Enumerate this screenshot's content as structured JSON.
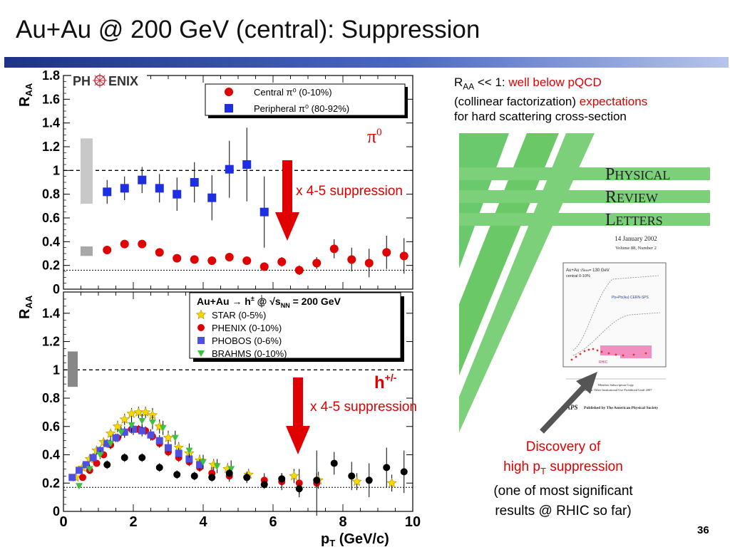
{
  "slide": {
    "title": "Au+Au @ 200 GeV (central): Suppression",
    "page_number": "36"
  },
  "notes": {
    "raa_symbol": "R",
    "raa_sub": "AA",
    "line1_black": " << 1: ",
    "line1_red": "well below pQCD",
    "line2_black": "(collinear factorization) ",
    "line2_red": "expectations",
    "line3_black": "for hard scattering cross-section"
  },
  "discovery": {
    "line1": "Discovery of",
    "line2_pre": "high p",
    "line2_sub": "T",
    "line2_post": " suppression",
    "line3": "(one of most significant",
    "line4": "results @ RHIC so far)"
  },
  "journal": {
    "line1_cap": "P",
    "line1_rest": "HYSICAL",
    "line2_cap": "R",
    "line2_rest": "EVIEW",
    "line3_cap": "L",
    "line3_rest": "ETTERS",
    "date": "14 January 2002",
    "volume": "Volume 88, Number 2",
    "inset_line1": "Au+Au √s",
    "inset_line1_sub": "NN",
    "inset_line1_post": "= 130 GeV",
    "inset_line2": "central 0-10%",
    "inset_pb": "Pb+Pb(Au) CERN-SPS",
    "inset_rhic": "RHIC",
    "member_line1": "Member Subscription Copy",
    "member_line2": "Library or Other Institutional Use Prohibited Until 2007",
    "aps_logo": "APS",
    "publisher": "Published by The American Physical Society",
    "colors": {
      "stripe": "#6ac867",
      "inset_band": "#f28fc0"
    }
  },
  "arrows": {
    "color": "#e00000"
  },
  "chart_data": [
    {
      "type": "scatter",
      "title": "",
      "xlabel": "",
      "ylabel": "R",
      "ylabel_sub": "AA",
      "ylim": [
        0,
        1.8
      ],
      "xlim": [
        0,
        10
      ],
      "yticks": [
        "0",
        "0.2",
        "0.4",
        "0.6",
        "0.8",
        "1",
        "1.2",
        "1.4",
        "1.6",
        "1.8"
      ],
      "reference_lines": [
        1.0,
        0.16
      ],
      "logo_left": "PH",
      "logo_right": "ENIX",
      "legend": {
        "placement": "top-right"
      },
      "label": "π",
      "label_sup": "0",
      "annotation": "x 4-5 suppression",
      "series": [
        {
          "name": "Central π⁰ (0-10%)",
          "marker": "circle",
          "color": "#e00000",
          "x": [
            1.25,
            1.75,
            2.25,
            2.75,
            3.25,
            3.75,
            4.25,
            4.75,
            5.25,
            5.75,
            6.25,
            6.75,
            7.25,
            7.75,
            8.25,
            8.75,
            9.25,
            9.75
          ],
          "y": [
            0.33,
            0.38,
            0.38,
            0.31,
            0.26,
            0.25,
            0.24,
            0.27,
            0.24,
            0.19,
            0.23,
            0.16,
            0.22,
            0.34,
            0.25,
            0.22,
            0.31,
            0.28
          ],
          "err": [
            0.03,
            0.03,
            0.03,
            0.03,
            0.03,
            0.03,
            0.03,
            0.03,
            0.03,
            0.03,
            0.04,
            0.04,
            0.05,
            0.08,
            0.1,
            0.12,
            0.14,
            0.15
          ]
        },
        {
          "name": "Peripheral π⁰ (80-92%)",
          "marker": "square",
          "color": "#1d2fe0",
          "x": [
            1.25,
            1.75,
            2.25,
            2.75,
            3.25,
            3.75,
            4.25,
            4.75,
            5.25,
            5.75
          ],
          "y": [
            0.82,
            0.85,
            0.92,
            0.85,
            0.8,
            0.9,
            0.77,
            1.01,
            1.05,
            0.65
          ],
          "err": [
            0.1,
            0.1,
            0.11,
            0.12,
            0.14,
            0.17,
            0.19,
            0.24,
            0.31,
            0.3
          ]
        }
      ]
    },
    {
      "type": "scatter",
      "title": "",
      "xlabel": "p",
      "xlabel_sub": "T",
      "xlabel_post": " (GeV/c)",
      "ylabel": "R",
      "ylabel_sub": "AA",
      "xlim": [
        0,
        10
      ],
      "ylim": [
        0,
        1.55
      ],
      "xticks": [
        "0",
        "2",
        "4",
        "6",
        "8",
        "10"
      ],
      "yticks": [
        "0",
        "0.2",
        "0.4",
        "0.6",
        "0.8",
        "1",
        "1.2",
        "1.4"
      ],
      "reference_lines": [
        1.0,
        0.17
      ],
      "legend": {
        "placement": "top-right"
      },
      "legend_title_pre": "Au+Au → h",
      "legend_title_sup": "±",
      "legend_title_mid": " @ √s",
      "legend_title_sub": "NN",
      "legend_title_post": " = 200 GeV",
      "label": "h",
      "label_sup": "+/-",
      "annotation": "x 4-5 suppression",
      "series": [
        {
          "name": "STAR (0-5%)",
          "marker": "star",
          "color": "#f5d800",
          "x": [
            0.35,
            0.55,
            0.75,
            0.95,
            1.15,
            1.35,
            1.55,
            1.75,
            1.95,
            2.15,
            2.35,
            2.55,
            2.75,
            3.0,
            3.3,
            3.6,
            3.9,
            4.3,
            4.7,
            5.3,
            6.6,
            7.3,
            8.4,
            9.4
          ],
          "y": [
            0.24,
            0.31,
            0.37,
            0.43,
            0.49,
            0.55,
            0.6,
            0.65,
            0.69,
            0.7,
            0.7,
            0.68,
            0.6,
            0.52,
            0.45,
            0.41,
            0.36,
            0.33,
            0.3,
            0.26,
            0.25,
            0.22,
            0.21,
            0.2
          ],
          "err": [
            0.02,
            0.02,
            0.02,
            0.03,
            0.03,
            0.03,
            0.04,
            0.04,
            0.04,
            0.04,
            0.04,
            0.05,
            0.05,
            0.05,
            0.04,
            0.04,
            0.04,
            0.04,
            0.04,
            0.04,
            0.05,
            0.06,
            0.06,
            0.06
          ]
        },
        {
          "name": "PHENIX (0-10%)",
          "marker": "circle",
          "color": "#e00000",
          "x": [
            0.55,
            0.75,
            0.95,
            1.15,
            1.35,
            1.55,
            1.75,
            1.95,
            2.15,
            2.35,
            2.55,
            2.75,
            3.0,
            3.3,
            3.6,
            3.9,
            4.25,
            4.75,
            5.25,
            5.75,
            6.25,
            6.75,
            7.25
          ],
          "y": [
            0.24,
            0.29,
            0.34,
            0.4,
            0.47,
            0.52,
            0.56,
            0.58,
            0.58,
            0.57,
            0.53,
            0.48,
            0.42,
            0.38,
            0.35,
            0.31,
            0.27,
            0.25,
            0.24,
            0.22,
            0.21,
            0.2,
            0.2
          ],
          "err": [
            0.02,
            0.02,
            0.02,
            0.02,
            0.02,
            0.03,
            0.03,
            0.03,
            0.03,
            0.03,
            0.03,
            0.03,
            0.03,
            0.03,
            0.03,
            0.03,
            0.04,
            0.04,
            0.04,
            0.05,
            0.06,
            0.1,
            0.23
          ]
        },
        {
          "name": "PHOBOS (0-6%)",
          "marker": "square",
          "color": "#5050e0",
          "x": [
            0.25,
            0.45,
            0.65,
            0.85,
            1.05,
            1.25,
            1.5,
            1.75,
            2.0,
            2.25,
            2.5,
            2.75,
            3.0,
            3.3,
            3.6,
            3.9
          ],
          "y": [
            0.24,
            0.29,
            0.33,
            0.38,
            0.43,
            0.48,
            0.52,
            0.56,
            0.58,
            0.57,
            0.54,
            0.5,
            0.45,
            0.41,
            0.37,
            0.33
          ],
          "err": [
            0.02,
            0.02,
            0.02,
            0.03,
            0.03,
            0.03,
            0.03,
            0.04,
            0.04,
            0.04,
            0.04,
            0.04,
            0.04,
            0.04,
            0.04,
            0.04
          ]
        },
        {
          "name": "BRAHMS (0-10%)",
          "marker": "triangle-down",
          "color": "#40c040",
          "x": [
            0.45,
            0.75,
            1.05,
            1.35,
            1.65,
            1.95,
            2.25,
            2.55,
            2.85,
            3.2,
            3.6,
            4.0,
            4.4,
            4.8
          ],
          "y": [
            0.18,
            0.3,
            0.4,
            0.48,
            0.56,
            0.61,
            0.64,
            0.63,
            0.59,
            0.52,
            0.43,
            0.35,
            0.32,
            0.3
          ],
          "err": [
            0.02,
            0.03,
            0.03,
            0.04,
            0.04,
            0.05,
            0.05,
            0.05,
            0.05,
            0.05,
            0.05,
            0.05,
            0.05,
            0.06
          ]
        },
        {
          "name": "",
          "marker": "circle",
          "color": "#000000",
          "x": [
            1.25,
            1.75,
            2.25,
            2.75,
            3.25,
            3.75,
            4.25,
            4.75,
            5.25,
            5.75,
            6.25,
            6.75,
            7.25,
            7.75,
            8.25,
            8.75,
            9.25,
            9.75
          ],
          "y": [
            0.33,
            0.38,
            0.38,
            0.31,
            0.26,
            0.25,
            0.24,
            0.27,
            0.24,
            0.19,
            0.23,
            0.16,
            0.22,
            0.34,
            0.25,
            0.22,
            0.31,
            0.28
          ],
          "err": [
            0.03,
            0.03,
            0.03,
            0.03,
            0.03,
            0.03,
            0.03,
            0.03,
            0.03,
            0.03,
            0.04,
            0.04,
            0.05,
            0.08,
            0.1,
            0.12,
            0.14,
            0.15
          ]
        }
      ]
    }
  ]
}
